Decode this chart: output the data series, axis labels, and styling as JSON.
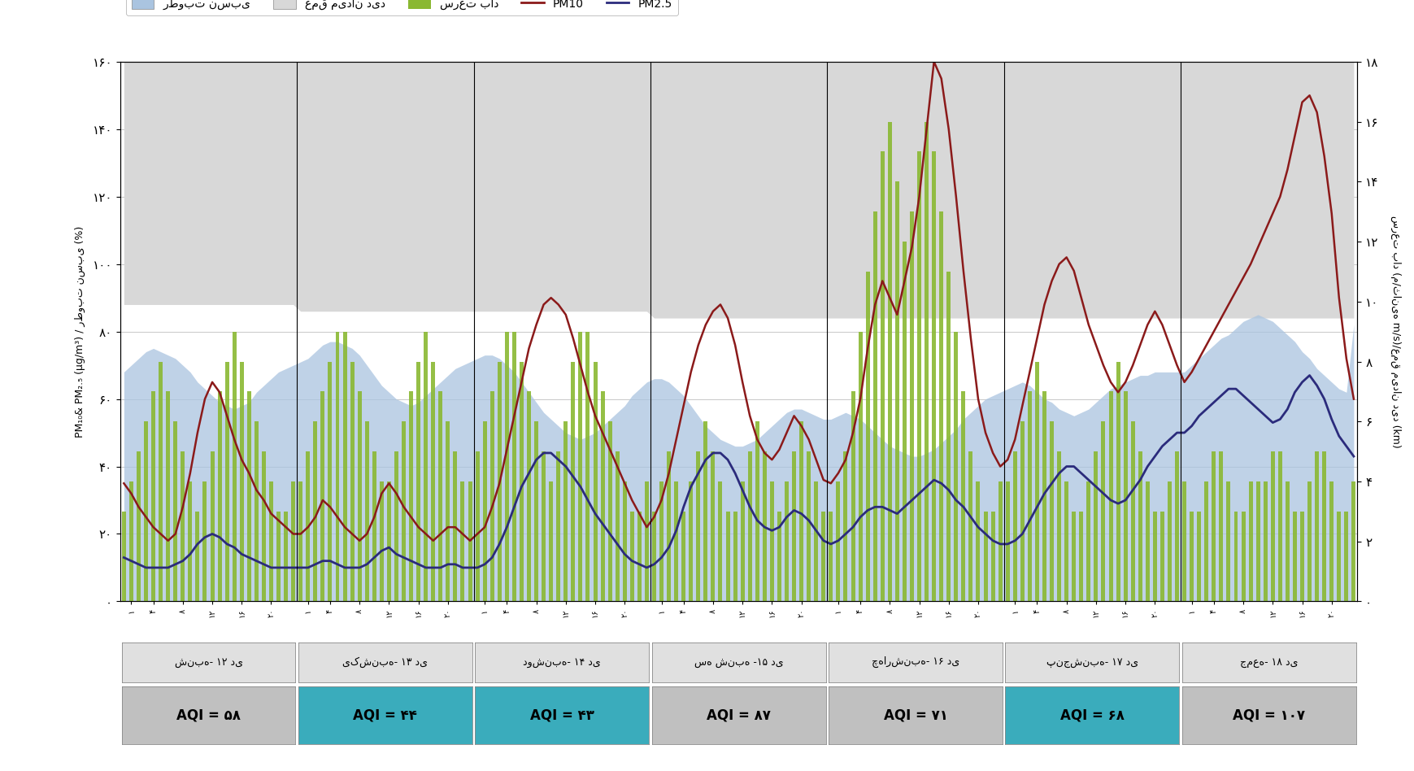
{
  "ylabel_left": "PM₁₀& PM₂.₅ (μg/m³) / رطوبت نسبی (%)",
  "ylabel_right": "سرعت باد (م/ثانیه m/s)/عمق میدان دید (km)",
  "ylim_left": [
    0,
    160
  ],
  "ylim_right": [
    0,
    18
  ],
  "yticks_left": [
    0,
    20,
    40,
    60,
    80,
    100,
    120,
    140,
    160
  ],
  "yticks_right": [
    0,
    2,
    4,
    6,
    8,
    10,
    12,
    14,
    16,
    18
  ],
  "ytick_labels_left": [
    "۰",
    "۲۰",
    "۴۰",
    "۶۰",
    "۸۰",
    "۱۰۰",
    "۱۲۰",
    "۱۴۰",
    "۱۶۰"
  ],
  "ytick_labels_right": [
    "۰",
    "۲",
    "۴",
    "۶",
    "۸",
    "۱۰",
    "۱۲",
    "۱۴",
    "۱۶",
    "۱۸"
  ],
  "n_points": 168,
  "days": [
    "شنبه- ۱۲ دی",
    "یکشنبه- ۱۳ دی",
    "دوشنبه- ۱۴ دی",
    "سه شنبه -۱۵ دی",
    "چهارشنبه- ۱۶ دی",
    "پنجشنبه- ۱۷ دی",
    "جمعه- ۱۸ دی"
  ],
  "aqi_values": [
    "۵۸",
    "۴۴",
    "۴۳",
    "۸۷",
    "۷۱",
    "۶۸",
    "۱۰۷"
  ],
  "aqi_colors": [
    "#c0c0c0",
    "#3aacbc",
    "#3aacbc",
    "#c0c0c0",
    "#c0c0c0",
    "#3aacbc",
    "#c0c0c0"
  ],
  "legend_labels": [
    "رطوبت نسبی",
    "عمق میدان دید",
    "سرعت باد",
    "PM10",
    "PM2.5"
  ],
  "color_humidity": "#aac4e0",
  "color_visibility": "#d8d8d8",
  "color_wind": "#8ab832",
  "color_pm10": "#8b1a1a",
  "color_pm25": "#2b2b7c",
  "background_color": "#ffffff",
  "hour_ticks": [
    1,
    4,
    8,
    12,
    16,
    20
  ],
  "hour_labels": [
    "۱",
    "۴",
    "۸",
    "۱۲",
    "۱۶",
    "۲۰"
  ]
}
